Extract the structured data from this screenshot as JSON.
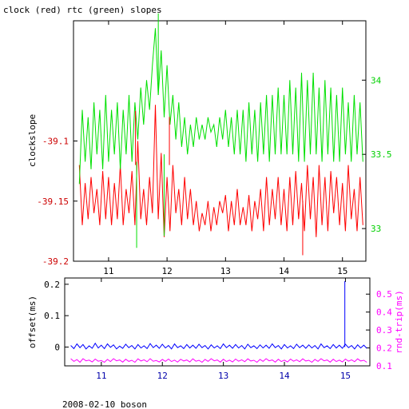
{
  "chart_data": [
    {
      "type": "line",
      "title": "clock (red) rtc (green) slopes",
      "xlabel": "",
      "ylabel": "clockslope",
      "y2label": "",
      "xlim": [
        10.4,
        15.4
      ],
      "ylim": [
        -39.2,
        -39.0
      ],
      "y2lim": [
        32.78,
        34.4
      ],
      "xticks": [
        "11",
        "12",
        "13",
        "14",
        "15"
      ],
      "yticks": [
        "-39.1",
        "-39.15",
        "-39.2"
      ],
      "y2ticks": [
        "34",
        "33.5",
        "33"
      ],
      "grid": false,
      "series": [
        {
          "axis": "left",
          "color": "#ff0000",
          "description": "clock slope (red), oscillating roughly between -39.17 and -39.12",
          "x": [
            10.5,
            10.55,
            10.6,
            10.65,
            10.7,
            10.75,
            10.8,
            10.85,
            10.9,
            10.95,
            11.0,
            11.05,
            11.1,
            11.15,
            11.2,
            11.25,
            11.3,
            11.35,
            11.4,
            11.45,
            11.5,
            11.55,
            11.6,
            11.65,
            11.7,
            11.75,
            11.8,
            11.85,
            11.9,
            11.95,
            12.0,
            12.05,
            12.1,
            12.15,
            12.2,
            12.25,
            12.3,
            12.35,
            12.4,
            12.45,
            12.5,
            12.55,
            12.6,
            12.65,
            12.7,
            12.75,
            12.8,
            12.85,
            12.9,
            12.95,
            13.0,
            13.05,
            13.1,
            13.15,
            13.2,
            13.25,
            13.3,
            13.35,
            13.4,
            13.45,
            13.5,
            13.55,
            13.6,
            13.65,
            13.7,
            13.75,
            13.8,
            13.85,
            13.9,
            13.95,
            14.0,
            14.05,
            14.1,
            14.15,
            14.2,
            14.25,
            14.3,
            14.35,
            14.4,
            14.45,
            14.5,
            14.55,
            14.6,
            14.65,
            14.7,
            14.75,
            14.8,
            14.85,
            14.9,
            14.95,
            15.0,
            15.05,
            15.1,
            15.15,
            15.2,
            15.25,
            15.3,
            15.35
          ],
          "y": [
            -39.12,
            -39.17,
            -39.135,
            -39.165,
            -39.13,
            -39.16,
            -39.14,
            -39.17,
            -39.125,
            -39.165,
            -39.13,
            -39.17,
            -39.135,
            -39.165,
            -39.12,
            -39.17,
            -39.14,
            -39.16,
            -39.125,
            -39.17,
            -39.1,
            -39.165,
            -39.14,
            -39.17,
            -39.13,
            -39.16,
            -39.07,
            -39.165,
            -39.11,
            -39.18,
            -39.13,
            -39.175,
            -39.12,
            -39.16,
            -39.14,
            -39.17,
            -39.13,
            -39.165,
            -39.14,
            -39.17,
            -39.15,
            -39.175,
            -39.16,
            -39.17,
            -39.15,
            -39.175,
            -39.155,
            -39.17,
            -39.15,
            -39.16,
            -39.145,
            -39.175,
            -39.15,
            -39.17,
            -39.14,
            -39.17,
            -39.155,
            -39.17,
            -39.145,
            -39.175,
            -39.15,
            -39.165,
            -39.14,
            -39.175,
            -39.13,
            -39.17,
            -39.14,
            -39.165,
            -39.13,
            -39.17,
            -39.14,
            -39.175,
            -39.13,
            -39.17,
            -39.125,
            -39.165,
            -39.135,
            -39.175,
            -39.12,
            -39.165,
            -39.13,
            -39.18,
            -39.12,
            -39.17,
            -39.13,
            -39.175,
            -39.125,
            -39.16,
            -39.13,
            -39.17,
            -39.135,
            -39.175,
            -39.12,
            -39.165,
            -39.14,
            -39.175,
            -39.13,
            -39.17
          ]
        },
        {
          "axis": "right",
          "color": "#00e000",
          "description": "rtc slope (green), oscillating roughly between 33.3 and 33.8",
          "x": [
            10.5,
            10.55,
            10.6,
            10.65,
            10.7,
            10.75,
            10.8,
            10.85,
            10.9,
            10.95,
            11.0,
            11.05,
            11.1,
            11.15,
            11.2,
            11.25,
            11.3,
            11.35,
            11.4,
            11.45,
            11.5,
            11.55,
            11.6,
            11.65,
            11.7,
            11.75,
            11.8,
            11.85,
            11.9,
            11.95,
            12.0,
            12.05,
            12.1,
            12.15,
            12.2,
            12.25,
            12.3,
            12.35,
            12.4,
            12.45,
            12.5,
            12.55,
            12.6,
            12.65,
            12.7,
            12.75,
            12.8,
            12.85,
            12.9,
            12.95,
            13.0,
            13.05,
            13.1,
            13.15,
            13.2,
            13.25,
            13.3,
            13.35,
            13.4,
            13.45,
            13.5,
            13.55,
            13.6,
            13.65,
            13.7,
            13.75,
            13.8,
            13.85,
            13.9,
            13.95,
            14.0,
            14.05,
            14.1,
            14.15,
            14.2,
            14.25,
            14.3,
            14.35,
            14.4,
            14.45,
            14.5,
            14.55,
            14.6,
            14.65,
            14.7,
            14.75,
            14.8,
            14.85,
            14.9,
            14.95,
            15.0,
            15.05,
            15.1,
            15.15,
            15.2,
            15.25,
            15.3,
            15.35
          ],
          "y": [
            33.3,
            33.8,
            33.45,
            33.75,
            33.4,
            33.85,
            33.5,
            33.8,
            33.4,
            33.9,
            33.45,
            33.8,
            33.5,
            33.85,
            33.4,
            33.8,
            33.5,
            33.9,
            33.45,
            33.85,
            33.6,
            33.95,
            33.7,
            34.0,
            33.8,
            34.1,
            34.35,
            33.9,
            34.2,
            33.75,
            34.1,
            33.7,
            33.9,
            33.6,
            33.85,
            33.55,
            33.75,
            33.5,
            33.7,
            33.55,
            33.75,
            33.6,
            33.7,
            33.6,
            33.75,
            33.65,
            33.7,
            33.55,
            33.75,
            33.6,
            33.8,
            33.55,
            33.75,
            33.5,
            33.8,
            33.5,
            33.8,
            33.45,
            33.85,
            33.5,
            33.8,
            33.45,
            33.85,
            33.5,
            33.9,
            33.45,
            33.9,
            33.5,
            33.95,
            33.5,
            33.9,
            33.5,
            34.0,
            33.5,
            33.95,
            33.45,
            34.05,
            33.45,
            34.0,
            33.5,
            34.05,
            33.5,
            33.95,
            33.45,
            34.0,
            33.5,
            33.95,
            33.45,
            33.9,
            33.45,
            33.95,
            33.5,
            33.85,
            33.45,
            33.9,
            33.5,
            33.85,
            33.45
          ]
        }
      ],
      "spikes": [
        {
          "axis": "left",
          "color": "#ff0000",
          "x": 11.46,
          "from": -39.12,
          "to": -39.075
        },
        {
          "axis": "right",
          "color": "#00e000",
          "x": 11.48,
          "from": 33.45,
          "to": 32.87
        },
        {
          "axis": "right",
          "color": "#00e000",
          "x": 11.85,
          "from": 33.9,
          "to": 34.45
        },
        {
          "axis": "right",
          "color": "#00e000",
          "x": 11.95,
          "from": 33.5,
          "to": 32.95
        },
        {
          "axis": "left",
          "color": "#ff0000",
          "x": 12.04,
          "from": -39.12,
          "to": -39.08
        },
        {
          "axis": "left",
          "color": "#ff0000",
          "x": 14.32,
          "from": -39.15,
          "to": -39.195
        }
      ]
    },
    {
      "type": "line",
      "xlabel": "",
      "ylabel": "offset(ms)",
      "y2label": "rnd-trip(ms)",
      "xlim": [
        10.4,
        15.4
      ],
      "ylim": [
        -0.06,
        0.22
      ],
      "y2lim": [
        0.1,
        0.59
      ],
      "xticks": [
        "11",
        "12",
        "13",
        "14",
        "15"
      ],
      "yticks": [
        "0.2",
        "0.1",
        "0"
      ],
      "y2ticks": [
        "0.5",
        "0.4",
        "0.3",
        "0.2",
        "0.1"
      ],
      "grid": false,
      "series": [
        {
          "axis": "left",
          "color": "#0000ff",
          "description": "offset (blue), noisy around 0",
          "x": [
            10.5,
            10.55,
            10.6,
            10.65,
            10.7,
            10.75,
            10.8,
            10.85,
            10.9,
            10.95,
            11.0,
            11.05,
            11.1,
            11.15,
            11.2,
            11.25,
            11.3,
            11.35,
            11.4,
            11.45,
            11.5,
            11.55,
            11.6,
            11.65,
            11.7,
            11.75,
            11.8,
            11.85,
            11.9,
            11.95,
            12.0,
            12.05,
            12.1,
            12.15,
            12.2,
            12.25,
            12.3,
            12.35,
            12.4,
            12.45,
            12.5,
            12.55,
            12.6,
            12.65,
            12.7,
            12.75,
            12.8,
            12.85,
            12.9,
            12.95,
            13.0,
            13.05,
            13.1,
            13.15,
            13.2,
            13.25,
            13.3,
            13.35,
            13.4,
            13.45,
            13.5,
            13.55,
            13.6,
            13.65,
            13.7,
            13.75,
            13.8,
            13.85,
            13.9,
            13.95,
            14.0,
            14.05,
            14.1,
            14.15,
            14.2,
            14.25,
            14.3,
            14.35,
            14.4,
            14.45,
            14.5,
            14.55,
            14.6,
            14.65,
            14.7,
            14.75,
            14.8,
            14.85,
            14.9,
            14.95,
            15.0,
            15.05,
            15.1,
            15.15,
            15.2,
            15.25,
            15.3,
            15.35
          ],
          "y": [
            0.005,
            -0.005,
            0.01,
            -0.002,
            0.008,
            -0.006,
            0.004,
            -0.004,
            0.012,
            -0.003,
            0.006,
            -0.005,
            0.01,
            -0.001,
            0.007,
            -0.006,
            0.003,
            -0.004,
            0.009,
            -0.002,
            0.005,
            -0.006,
            0.008,
            -0.003,
            0.004,
            -0.005,
            0.011,
            -0.002,
            0.006,
            -0.004,
            0.009,
            -0.003,
            0.005,
            -0.006,
            0.01,
            -0.002,
            0.004,
            -0.005,
            0.008,
            -0.003,
            0.006,
            -0.004,
            0.009,
            -0.002,
            0.005,
            -0.006,
            0.007,
            -0.003,
            0.004,
            -0.005,
            0.01,
            -0.002,
            0.006,
            -0.004,
            0.008,
            -0.003,
            0.005,
            -0.006,
            0.009,
            -0.002,
            0.004,
            -0.005,
            0.007,
            -0.003,
            0.006,
            -0.004,
            0.01,
            -0.002,
            0.005,
            -0.006,
            0.008,
            -0.003,
            0.004,
            -0.005,
            0.009,
            -0.002,
            0.006,
            -0.004,
            0.007,
            -0.003,
            0.005,
            -0.006,
            0.01,
            -0.002,
            0.004,
            -0.005,
            0.008,
            -0.003,
            0.006,
            -0.004,
            0.009,
            -0.002,
            0.005,
            -0.006,
            0.007,
            -0.003,
            0.006,
            -0.004
          ]
        },
        {
          "axis": "right",
          "color": "#ff00ff",
          "description": "round-trip (magenta), noisy around 0.13",
          "x": [
            10.5,
            10.55,
            10.6,
            10.65,
            10.7,
            10.75,
            10.8,
            10.85,
            10.9,
            10.95,
            11.0,
            11.05,
            11.1,
            11.15,
            11.2,
            11.25,
            11.3,
            11.35,
            11.4,
            11.45,
            11.5,
            11.55,
            11.6,
            11.65,
            11.7,
            11.75,
            11.8,
            11.85,
            11.9,
            11.95,
            12.0,
            12.05,
            12.1,
            12.15,
            12.2,
            12.25,
            12.3,
            12.35,
            12.4,
            12.45,
            12.5,
            12.55,
            12.6,
            12.65,
            12.7,
            12.75,
            12.8,
            12.85,
            12.9,
            12.95,
            13.0,
            13.05,
            13.1,
            13.15,
            13.2,
            13.25,
            13.3,
            13.35,
            13.4,
            13.45,
            13.5,
            13.55,
            13.6,
            13.65,
            13.7,
            13.75,
            13.8,
            13.85,
            13.9,
            13.95,
            14.0,
            14.05,
            14.1,
            14.15,
            14.2,
            14.25,
            14.3,
            14.35,
            14.4,
            14.45,
            14.5,
            14.55,
            14.6,
            14.65,
            14.7,
            14.75,
            14.8,
            14.85,
            14.9,
            14.95,
            15.0,
            15.05,
            15.1,
            15.15,
            15.2,
            15.25,
            15.3,
            15.35
          ],
          "y": [
            0.14,
            0.125,
            0.135,
            0.12,
            0.14,
            0.128,
            0.132,
            0.122,
            0.138,
            0.126,
            0.13,
            0.12,
            0.136,
            0.124,
            0.14,
            0.128,
            0.133,
            0.121,
            0.137,
            0.125,
            0.131,
            0.12,
            0.139,
            0.127,
            0.134,
            0.123,
            0.14,
            0.126,
            0.13,
            0.122,
            0.136,
            0.125,
            0.138,
            0.124,
            0.132,
            0.121,
            0.137,
            0.127,
            0.133,
            0.122,
            0.139,
            0.126,
            0.131,
            0.12,
            0.136,
            0.125,
            0.14,
            0.128,
            0.133,
            0.121,
            0.137,
            0.124,
            0.132,
            0.122,
            0.138,
            0.126,
            0.134,
            0.123,
            0.139,
            0.127,
            0.131,
            0.12,
            0.136,
            0.125,
            0.14,
            0.128,
            0.133,
            0.121,
            0.137,
            0.124,
            0.132,
            0.122,
            0.138,
            0.126,
            0.134,
            0.123,
            0.139,
            0.127,
            0.131,
            0.12,
            0.136,
            0.125,
            0.14,
            0.128,
            0.133,
            0.121,
            0.137,
            0.124,
            0.132,
            0.122,
            0.138,
            0.126,
            0.134,
            0.123,
            0.139,
            0.127,
            0.131,
            0.12
          ]
        }
      ],
      "spikes": [
        {
          "axis": "left",
          "color": "#0000ff",
          "x": 14.99,
          "from": 0.0,
          "to": 0.21
        }
      ]
    }
  ],
  "footer": {
    "text": "2008-02-10 boson"
  }
}
